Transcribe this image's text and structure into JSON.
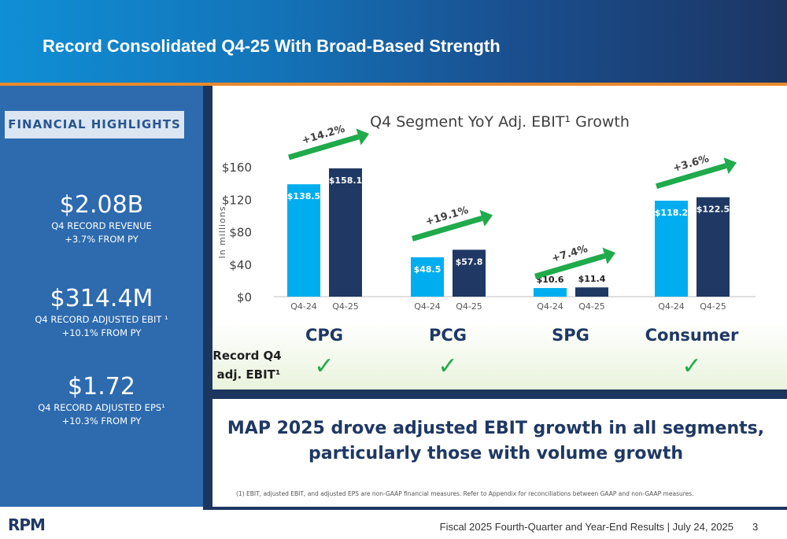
{
  "header": {
    "title": "Record Consolidated Q4-25 With Broad-Based Strength"
  },
  "left_panel": {
    "label": "FINANCIAL HIGHLIGHTS",
    "metrics": [
      {
        "value": "$2.08B",
        "line1": "Q4 RECORD REVENUE",
        "line2": "+3.7% FROM PY"
      },
      {
        "value": "$314.4M",
        "line1": "Q4 RECORD ADJUSTED EBIT ¹",
        "line2": "+10.1% FROM PY"
      },
      {
        "value": "$1.72",
        "line1": "Q4 RECORD ADJUSTED EPS¹",
        "line2": "+10.3% FROM PY"
      }
    ]
  },
  "chart_data": {
    "type": "bar",
    "title": "Q4 Segment YoY Adj. EBIT¹ Growth",
    "ylabel": "In millions",
    "ylim": [
      0,
      160
    ],
    "yticks": [
      0,
      40,
      80,
      120,
      160
    ],
    "ytick_labels": [
      "$0",
      "$40",
      "$80",
      "$120",
      "$160"
    ],
    "groups": [
      {
        "name": "CPG",
        "categories": [
          "Q4-24",
          "Q4-25"
        ],
        "values": [
          138.5,
          158.1
        ],
        "labels": [
          "$138.5",
          "$158.1"
        ],
        "growth": "+14.2%",
        "record": true
      },
      {
        "name": "PCG",
        "categories": [
          "Q4-24",
          "Q4-25"
        ],
        "values": [
          48.5,
          57.8
        ],
        "labels": [
          "$48.5",
          "$57.8"
        ],
        "growth": "+19.1%",
        "record": true
      },
      {
        "name": "SPG",
        "categories": [
          "Q4-24",
          "Q4-25"
        ],
        "values": [
          10.6,
          11.4
        ],
        "labels": [
          "$10.6",
          "$11.4"
        ],
        "growth": "+7.4%",
        "record": false
      },
      {
        "name": "Consumer",
        "categories": [
          "Q4-24",
          "Q4-25"
        ],
        "values": [
          118.2,
          122.5
        ],
        "labels": [
          "$118.2",
          "$122.5"
        ],
        "growth": "+3.6%",
        "record": true
      }
    ],
    "record_label_line1": "Record Q4",
    "record_label_line2": "adj. EBIT¹",
    "colors": {
      "q4_24": "#00aeef",
      "q4_25": "#1f3864",
      "arrow": "#1faa4b",
      "check": "#1faa4b"
    }
  },
  "headline": {
    "line1": "MAP 2025 drove adjusted EBIT growth in all segments,",
    "line2": "particularly those with volume growth"
  },
  "footnote": "(1)    EBIT, adjusted EBIT, and adjusted EPS are non-GAAP financial measures. Refer to Appendix for reconciliations between GAAP and non-GAAP measures.",
  "footer": {
    "text": "Fiscal 2025 Fourth-Quarter and Year-End Results | July 24, 2025",
    "page": "3",
    "logo": "RPM"
  }
}
